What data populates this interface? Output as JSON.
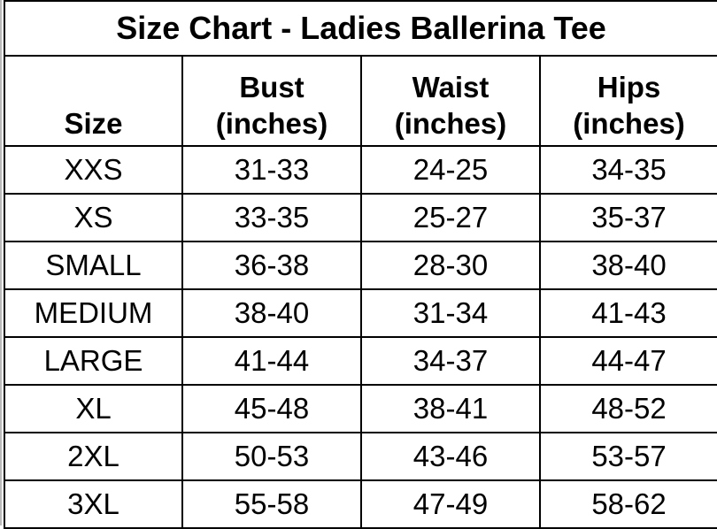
{
  "title": "Size Chart - Ladies Ballerina Tee",
  "headers": [
    {
      "line1": "",
      "line2": "Size"
    },
    {
      "line1": "Bust",
      "line2": "(inches)"
    },
    {
      "line1": "Waist",
      "line2": "(inches)"
    },
    {
      "line1": "Hips",
      "line2": "(inches)"
    }
  ],
  "rows": [
    [
      "XXS",
      "31-33",
      "24-25",
      "34-35"
    ],
    [
      "XS",
      "33-35",
      "25-27",
      "35-37"
    ],
    [
      "SMALL",
      "36-38",
      "28-30",
      "38-40"
    ],
    [
      "MEDIUM",
      "38-40",
      "31-34",
      "41-43"
    ],
    [
      "LARGE",
      "41-44",
      "34-37",
      "44-47"
    ],
    [
      "XL",
      "45-48",
      "38-41",
      "48-52"
    ],
    [
      "2XL",
      "50-53",
      "43-46",
      "53-57"
    ],
    [
      "3XL",
      "55-58",
      "47-49",
      "58-62"
    ]
  ]
}
